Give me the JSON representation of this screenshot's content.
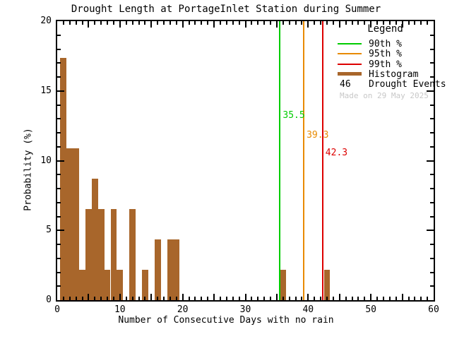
{
  "figure": {
    "made_on": "Made on 29 May 2025"
  },
  "chart_data": {
    "type": "bar",
    "title": "Drought Length at PortageInlet Station during Summer",
    "xlabel": "Number of Consecutive Days with no rain",
    "ylabel": "Probability (%)",
    "xlim": [
      0,
      60
    ],
    "ylim": [
      0,
      20
    ],
    "x_major_ticks": [
      0,
      10,
      20,
      30,
      40,
      50,
      60
    ],
    "y_major_ticks": [
      0,
      5,
      10,
      15,
      20
    ],
    "minor_tick_step": 1,
    "bin_width": 1,
    "grid": false,
    "legend_position": "upper-right",
    "bins": [
      {
        "x": 1,
        "value": 17.39
      },
      {
        "x": 2,
        "value": 10.87
      },
      {
        "x": 3,
        "value": 10.87
      },
      {
        "x": 4,
        "value": 2.17
      },
      {
        "x": 5,
        "value": 6.52
      },
      {
        "x": 6,
        "value": 8.7
      },
      {
        "x": 7,
        "value": 6.52
      },
      {
        "x": 8,
        "value": 2.17
      },
      {
        "x": 9,
        "value": 6.52
      },
      {
        "x": 10,
        "value": 2.17
      },
      {
        "x": 12,
        "value": 6.52
      },
      {
        "x": 14,
        "value": 2.17
      },
      {
        "x": 16,
        "value": 4.35
      },
      {
        "x": 18,
        "value": 4.35
      },
      {
        "x": 19,
        "value": 4.35
      },
      {
        "x": 36,
        "value": 2.17
      },
      {
        "x": 43,
        "value": 2.17
      }
    ],
    "percentiles": [
      {
        "label": "90th %",
        "value": 35.5,
        "value_label": "35.5",
        "color": "#00CC00",
        "label_y": 126
      },
      {
        "label": "95th %",
        "value": 39.3,
        "value_label": "39.3",
        "color": "#E88A00",
        "label_y": 154
      },
      {
        "label": "99th %",
        "value": 42.3,
        "value_label": "42.3",
        "color": "#DD0000",
        "label_y": 179
      }
    ],
    "legend": {
      "title": "Legend",
      "histogram_label": "Histogram",
      "events_count": "46",
      "events_label": "Drought Events"
    },
    "colors": {
      "histogram": "#A8662B",
      "axis": "#000000",
      "made_on": "#C8C8C8"
    }
  }
}
